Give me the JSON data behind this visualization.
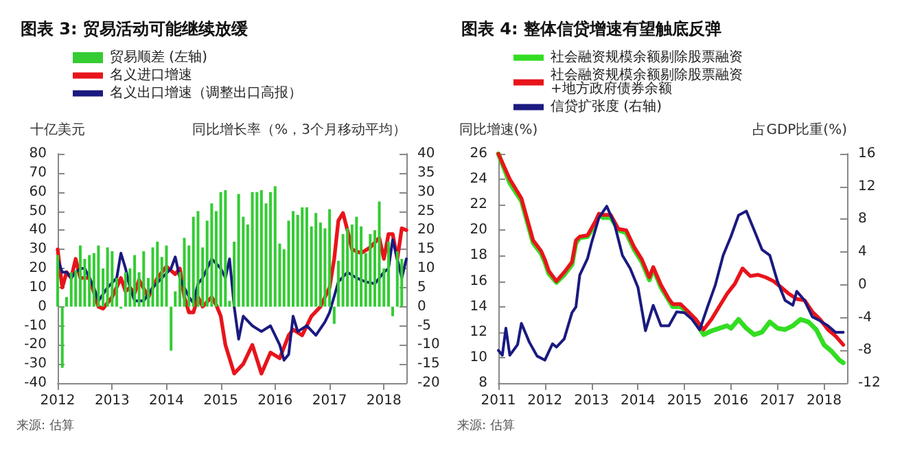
{
  "chart_data": [
    {
      "type": "bar",
      "title": "图表 3: 贸易活动可能继续放缓",
      "ylabel": "十亿美元",
      "y2label": "同比增长率（%，3个月移动平均）",
      "annotations": [
        "来源: 估算"
      ],
      "xlim": [
        "2012-01",
        "2018-06"
      ],
      "xticks": [
        "2012",
        "2013",
        "2014",
        "2015",
        "2016",
        "2017",
        "2018"
      ],
      "ylim": [
        -40,
        80
      ],
      "yticks": [
        -40,
        -30,
        -20,
        -10,
        0,
        10,
        20,
        30,
        40,
        50,
        60,
        70,
        80
      ],
      "y2lim": [
        -20,
        40
      ],
      "y2ticks": [
        -20,
        -15,
        -10,
        -5,
        0,
        5,
        10,
        15,
        20,
        25,
        30,
        35,
        40
      ],
      "legend": "top left",
      "marker": "none",
      "line_style": "solid",
      "series": [
        {
          "name": "贸易顺差 (左轴)",
          "color": "#33cc33",
          "x": [
            "2012-01",
            "2012-02",
            "2012-03",
            "2012-04",
            "2012-05",
            "2012-06",
            "2012-07",
            "2012-08",
            "2012-09",
            "2012-10",
            "2012-11",
            "2012-12",
            "2013-01",
            "2013-02",
            "2013-03",
            "2013-04",
            "2013-05",
            "2013-06",
            "2013-07",
            "2013-08",
            "2013-09",
            "2013-10",
            "2013-11",
            "2013-12",
            "2014-01",
            "2014-02",
            "2014-03",
            "2014-04",
            "2014-05",
            "2014-06",
            "2014-07",
            "2014-08",
            "2014-09",
            "2014-10",
            "2014-11",
            "2014-12",
            "2015-01",
            "2015-02",
            "2015-03",
            "2015-04",
            "2015-05",
            "2015-06",
            "2015-07",
            "2015-08",
            "2015-09",
            "2015-10",
            "2015-11",
            "2015-12",
            "2016-01",
            "2016-02",
            "2016-03",
            "2016-04",
            "2016-05",
            "2016-06",
            "2016-07",
            "2016-08",
            "2016-09",
            "2016-10",
            "2016-11",
            "2016-12",
            "2017-01",
            "2017-02",
            "2017-03",
            "2017-04",
            "2017-05",
            "2017-06",
            "2017-07",
            "2017-08",
            "2017-09",
            "2017-10",
            "2017-11",
            "2017-12",
            "2018-01",
            "2018-02",
            "2018-03",
            "2018-04",
            "2018-05"
          ],
          "values": [
            27,
            -32,
            5,
            18,
            19,
            32,
            25,
            27,
            28,
            32,
            20,
            31,
            29,
            15,
            -1,
            18,
            20,
            27,
            18,
            29,
            15,
            31,
            34,
            26,
            32,
            -23,
            8,
            18,
            36,
            32,
            47,
            50,
            31,
            45,
            54,
            50,
            60,
            61,
            3,
            34,
            59,
            47,
            43,
            60,
            60,
            61,
            54,
            60,
            63,
            33,
            30,
            45,
            50,
            48,
            52,
            52,
            42,
            49,
            44,
            41,
            51,
            -9,
            24,
            38,
            41,
            43,
            47,
            42,
            28,
            38,
            40,
            55,
            20,
            34,
            -5,
            29,
            25
          ]
        },
        {
          "name": "名义进口增速",
          "type": "line",
          "axis": "y2",
          "color": "#e8141b",
          "x": [
            "2012-01",
            "2012-02",
            "2012-03",
            "2012-04",
            "2012-05",
            "2012-06",
            "2012-08",
            "2012-10",
            "2012-11",
            "2013-01",
            "2013-03",
            "2013-04",
            "2013-05",
            "2013-06",
            "2013-07",
            "2013-09",
            "2013-11",
            "2014-01",
            "2014-03",
            "2014-04",
            "2014-05",
            "2014-06",
            "2014-07",
            "2014-08",
            "2014-09",
            "2014-11",
            "2014-12",
            "2015-01",
            "2015-02",
            "2015-04",
            "2015-06",
            "2015-08",
            "2015-10",
            "2015-12",
            "2016-02",
            "2016-04",
            "2016-05",
            "2016-07",
            "2016-09",
            "2016-11",
            "2017-01",
            "2017-02",
            "2017-03",
            "2017-04",
            "2017-05",
            "2017-06",
            "2017-08",
            "2017-10",
            "2017-12",
            "2018-01",
            "2018-02",
            "2018-03",
            "2018-04",
            "2018-05",
            "2018-06"
          ],
          "values": [
            15,
            5,
            9,
            7.5,
            12.5,
            7.5,
            7.5,
            0,
            -0.5,
            2.5,
            7.5,
            4,
            5,
            3.5,
            7,
            2.5,
            7.5,
            10.5,
            8.5,
            10,
            2.5,
            -1.5,
            -1.5,
            2.5,
            0,
            2.5,
            0.5,
            -2.5,
            -10,
            -17.5,
            -15,
            -10,
            -17.5,
            -12,
            -13.5,
            -7.5,
            -6,
            -7.5,
            -2.5,
            0,
            5,
            12.5,
            22.5,
            24.5,
            20,
            15,
            14,
            15.5,
            18,
            12.5,
            19,
            19,
            12.5,
            20.5,
            20
          ]
        },
        {
          "name": "名义出口增速（调整出口高报）",
          "type": "line",
          "axis": "y2",
          "color": "#1a1a80",
          "x": [
            "2012-01",
            "2012-02",
            "2012-03",
            "2012-04",
            "2012-05",
            "2012-06",
            "2012-07",
            "2012-09",
            "2012-10",
            "2012-12",
            "2013-02",
            "2013-03",
            "2013-04",
            "2013-05",
            "2013-06",
            "2013-08",
            "2013-10",
            "2013-12",
            "2014-02",
            "2014-03",
            "2014-04",
            "2014-06",
            "2014-07",
            "2014-08",
            "2014-09",
            "2014-11",
            "2015-01",
            "2015-02",
            "2015-03",
            "2015-04",
            "2015-05",
            "2015-06",
            "2015-08",
            "2015-10",
            "2015-12",
            "2016-02",
            "2016-03",
            "2016-04",
            "2016-05",
            "2016-06",
            "2016-08",
            "2016-10",
            "2016-12",
            "2017-01",
            "2017-03",
            "2017-05",
            "2017-07",
            "2017-09",
            "2017-11",
            "2018-01",
            "2018-02",
            "2018-03",
            "2018-04",
            "2018-05",
            "2018-06"
          ],
          "values": [
            12.5,
            9,
            9,
            7.5,
            9,
            10,
            10,
            5,
            1.5,
            5,
            7.5,
            14,
            10,
            5,
            1.5,
            1.5,
            5,
            7.5,
            10,
            13,
            7.5,
            2.5,
            1,
            6,
            7.5,
            12.5,
            10,
            7.5,
            12.5,
            0,
            -8.5,
            -2.5,
            -5,
            -6.5,
            -5,
            -10,
            -14,
            -12.5,
            -2.5,
            -6.5,
            -5,
            -7.5,
            -4,
            -1.5,
            6.5,
            9,
            7.5,
            6.5,
            6,
            9,
            10,
            17.5,
            12.5,
            7.5,
            12.5
          ]
        }
      ]
    },
    {
      "type": "line",
      "title": "图表 4: 整体信贷增速有望触底反弹",
      "ylabel": "同比增速(%)",
      "y2label": "占GDP比重(%)",
      "annotations": [
        "来源: 估算"
      ],
      "xlim": [
        "2011-01",
        "2018-07"
      ],
      "xticks": [
        "2011",
        "2012",
        "2013",
        "2014",
        "2015",
        "2016",
        "2017",
        "2018"
      ],
      "ylim": [
        8,
        26
      ],
      "yticks": [
        8,
        10,
        12,
        14,
        16,
        18,
        20,
        22,
        24,
        26
      ],
      "y2lim": [
        -12,
        16
      ],
      "y2ticks": [
        -12,
        -8,
        -4,
        0,
        4,
        8,
        12,
        16
      ],
      "legend": "top left",
      "marker": "none",
      "line_style": "solid",
      "series": [
        {
          "name": "社会融资规模余额剔除股票融资",
          "color": "#33dd22",
          "x": [
            "2011-01",
            "2011-04",
            "2011-07",
            "2011-10",
            "2011-12",
            "2012-01",
            "2012-02",
            "2012-04",
            "2012-06",
            "2012-08",
            "2012-09",
            "2012-10",
            "2012-12",
            "2013-02",
            "2013-03",
            "2013-04",
            "2013-06",
            "2013-08",
            "2013-10",
            "2013-12",
            "2014-02",
            "2014-04",
            "2014-05",
            "2014-07",
            "2014-09",
            "2014-10",
            "2014-12",
            "2015-02",
            "2015-04",
            "2015-06",
            "2015-08",
            "2015-10",
            "2015-12",
            "2016-01",
            "2016-03",
            "2016-05",
            "2016-07",
            "2016-09",
            "2016-11",
            "2017-01",
            "2017-03",
            "2017-05",
            "2017-07",
            "2017-09",
            "2017-11",
            "2018-01",
            "2018-03",
            "2018-05",
            "2018-06"
          ],
          "values": [
            26,
            23.7,
            22.3,
            19,
            18.2,
            17.5,
            16.6,
            15.9,
            16.5,
            17.3,
            19,
            19.4,
            19.5,
            20.5,
            21.2,
            21,
            21,
            20,
            19.8,
            18.5,
            17.5,
            16.1,
            17,
            15.5,
            14.5,
            14,
            14,
            13.5,
            12.8,
            11.8,
            12.1,
            12.3,
            12.5,
            12.3,
            13,
            12.3,
            11.8,
            12,
            12.8,
            12.3,
            12.2,
            12.5,
            13,
            12.8,
            12.2,
            11,
            10.5,
            9.8,
            9.6
          ]
        },
        {
          "name": "社会融资规模余额剔除股票融资+地方政府债券余额",
          "color": "#e8141b",
          "x": [
            "2011-01",
            "2011-04",
            "2011-07",
            "2011-10",
            "2011-12",
            "2012-01",
            "2012-02",
            "2012-04",
            "2012-06",
            "2012-08",
            "2012-09",
            "2012-10",
            "2012-12",
            "2013-02",
            "2013-03",
            "2013-04",
            "2013-06",
            "2013-08",
            "2013-10",
            "2013-12",
            "2014-02",
            "2014-04",
            "2014-05",
            "2014-07",
            "2014-09",
            "2014-10",
            "2014-12",
            "2015-02",
            "2015-04",
            "2015-06",
            "2015-08",
            "2015-10",
            "2015-12",
            "2016-02",
            "2016-04",
            "2016-06",
            "2016-08",
            "2016-10",
            "2016-12",
            "2017-02",
            "2017-04",
            "2017-06",
            "2017-08",
            "2017-10",
            "2017-12",
            "2018-02",
            "2018-04",
            "2018-06"
          ],
          "values": [
            26,
            24,
            22.5,
            19.2,
            18.4,
            17.7,
            16.8,
            16,
            16.7,
            17.5,
            19.2,
            19.5,
            19.6,
            20.7,
            21.3,
            21.2,
            21.2,
            20.1,
            20,
            18.7,
            17.7,
            16.3,
            17.1,
            15.7,
            14.6,
            14.2,
            14.2,
            13.6,
            13,
            12.2,
            13,
            14,
            15,
            15.8,
            17,
            16.4,
            16.5,
            16.3,
            16,
            15.5,
            15,
            14.6,
            14.5,
            13.6,
            13,
            12.2,
            11.7,
            11
          ]
        },
        {
          "name": "信贷扩张度 (右轴)",
          "axis": "y2",
          "color": "#1a1a80",
          "x": [
            "2011-01",
            "2011-02",
            "2011-03",
            "2011-04",
            "2011-06",
            "2011-07",
            "2011-09",
            "2011-11",
            "2012-01",
            "2012-03",
            "2012-04",
            "2012-06",
            "2012-08",
            "2012-09",
            "2012-10",
            "2012-12",
            "2013-01",
            "2013-03",
            "2013-05",
            "2013-07",
            "2013-09",
            "2013-11",
            "2014-01",
            "2014-03",
            "2014-05",
            "2014-07",
            "2014-09",
            "2014-11",
            "2015-01",
            "2015-03",
            "2015-05",
            "2015-07",
            "2015-09",
            "2015-11",
            "2016-01",
            "2016-03",
            "2016-05",
            "2016-07",
            "2016-09",
            "2016-11",
            "2017-01",
            "2017-03",
            "2017-05",
            "2017-06",
            "2017-08",
            "2017-10",
            "2017-12",
            "2018-02",
            "2018-04",
            "2018-06"
          ],
          "values": [
            -8,
            -8.6,
            -5.3,
            -8.6,
            -7.3,
            -4.7,
            -7,
            -8.7,
            -9.2,
            -7.2,
            -7.6,
            -6.6,
            -3.4,
            -2.7,
            1.2,
            3.2,
            5.1,
            8.2,
            9.6,
            7.4,
            3.6,
            2,
            -0.3,
            -5.6,
            -2.5,
            -5,
            -5,
            -3.3,
            -3.4,
            -4.2,
            -5.5,
            -2.7,
            0,
            3.6,
            5.9,
            8.5,
            9,
            6.7,
            4.3,
            3.6,
            0.4,
            -1.9,
            -2.5,
            -0.8,
            -1.9,
            -3.9,
            -4.4,
            -5,
            -5.8,
            -5.8
          ]
        }
      ]
    }
  ]
}
